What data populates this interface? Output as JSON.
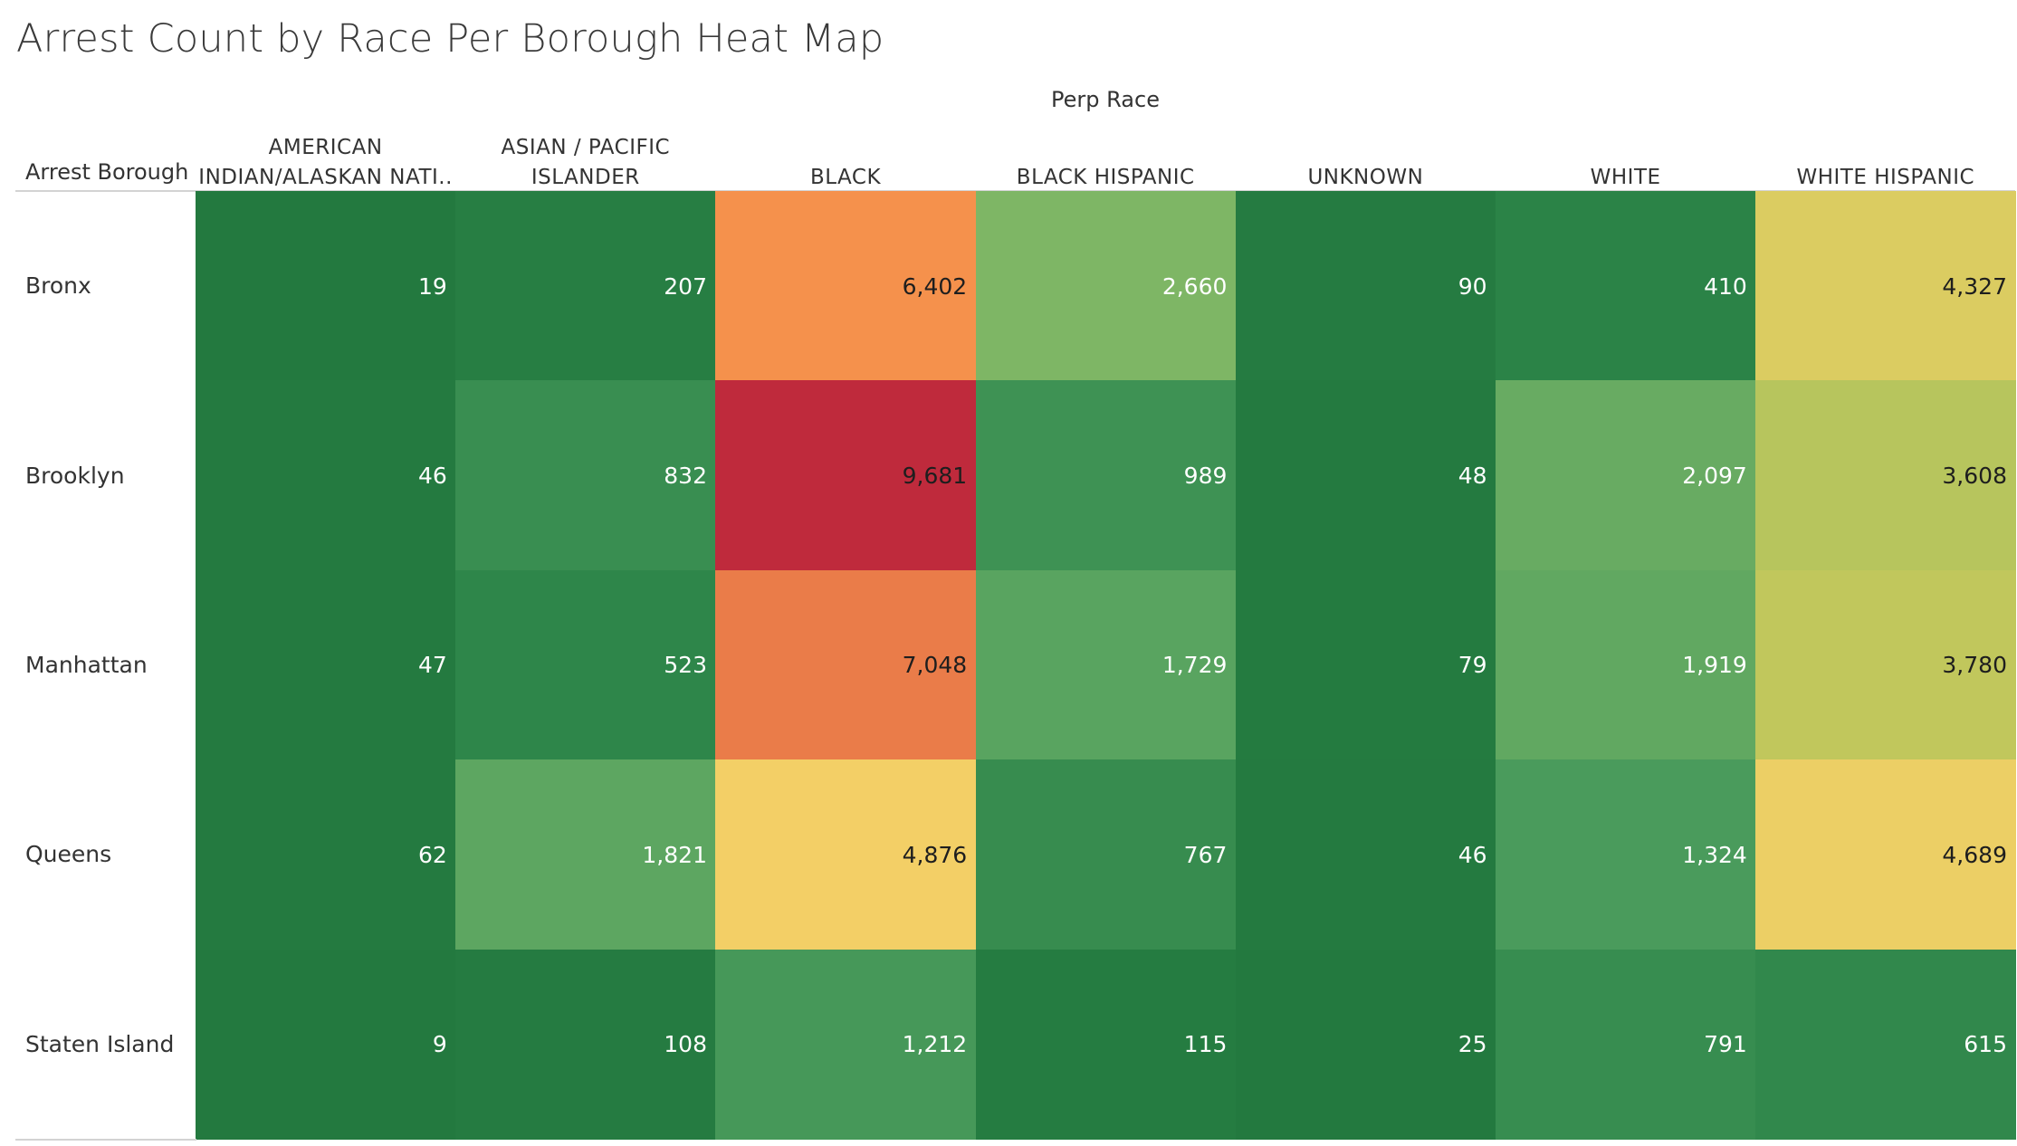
{
  "chart_data": {
    "type": "heatmap",
    "title": "Arrest Count by Race Per Borough Heat Map",
    "column_group_label": "Perp Race",
    "row_group_label": "Arrest Borough",
    "columns": [
      "AMERICAN INDIAN/ALASKAN NATI..",
      "ASIAN / PACIFIC ISLANDER",
      "BLACK",
      "BLACK HISPANIC",
      "UNKNOWN",
      "WHITE",
      "WHITE HISPANIC"
    ],
    "rows": [
      "Bronx",
      "Brooklyn",
      "Manhattan",
      "Queens",
      "Staten Island"
    ],
    "values": [
      [
        19,
        207,
        6402,
        2660,
        90,
        410,
        4327
      ],
      [
        46,
        832,
        9681,
        989,
        48,
        2097,
        3608
      ],
      [
        47,
        523,
        7048,
        1729,
        79,
        1919,
        3780
      ],
      [
        62,
        1821,
        4876,
        767,
        46,
        1324,
        4689
      ],
      [
        9,
        108,
        1212,
        115,
        25,
        791,
        615
      ]
    ],
    "value_labels": [
      [
        "19",
        "207",
        "6,402",
        "2,660",
        "90",
        "410",
        "4,327"
      ],
      [
        "46",
        "832",
        "9,681",
        "989",
        "48",
        "2,097",
        "3,608"
      ],
      [
        "47",
        "523",
        "7,048",
        "1,729",
        "79",
        "1,919",
        "3,780"
      ],
      [
        "62",
        "1,821",
        "4,876",
        "767",
        "46",
        "1,324",
        "4,689"
      ],
      [
        "9",
        "108",
        "1,212",
        "115",
        "25",
        "791",
        "615"
      ]
    ],
    "color_scale": [
      "#23793f",
      "#2d8549",
      "#4f9f5f",
      "#7cb565",
      "#c7c95b",
      "#f3d067",
      "#f5914c",
      "#bf2a3c"
    ],
    "legend": false
  }
}
